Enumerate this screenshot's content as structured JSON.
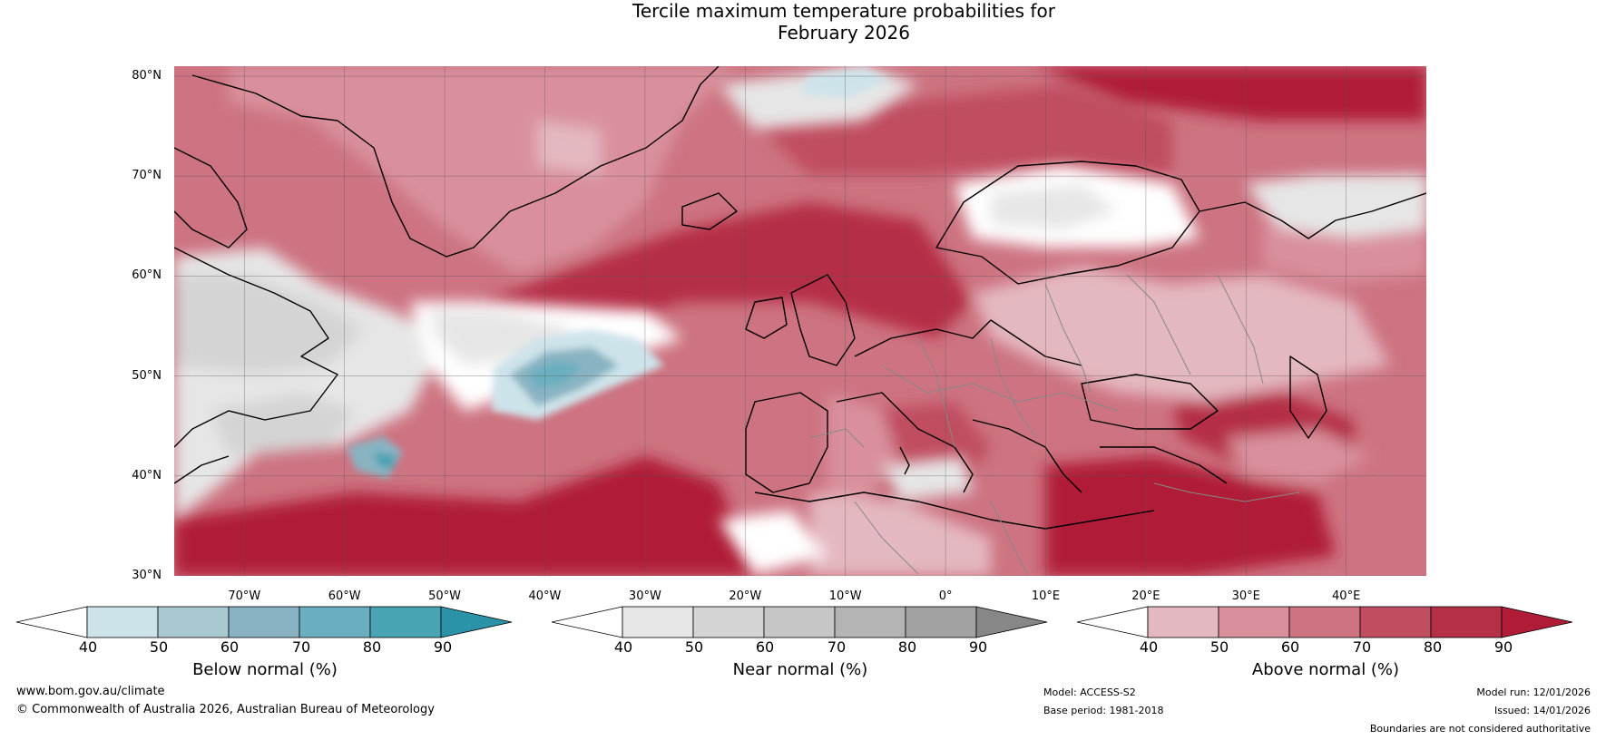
{
  "title_line1": "Tercile maximum temperature probabilities for",
  "title_line2": "February 2026",
  "map": {
    "lat_labels": [
      "80°N",
      "70°N",
      "60°N",
      "50°N",
      "40°N",
      "30°N"
    ],
    "lon_labels": [
      "70°W",
      "60°W",
      "50°W",
      "40°W",
      "30°W",
      "20°W",
      "10°W",
      "0°",
      "10°E",
      "20°E",
      "30°E",
      "40°E"
    ],
    "lat_range": [
      30,
      81
    ],
    "lon_range": [
      -77,
      48
    ]
  },
  "colorbars": [
    {
      "title": "Below normal (%)",
      "ticks": [
        "40",
        "50",
        "60",
        "70",
        "80",
        "90"
      ],
      "colors": [
        "#ffffff",
        "#cde3ea",
        "#a9c8d0",
        "#89b3c2",
        "#6aafc0",
        "#48a3b3",
        "#2a93a8"
      ]
    },
    {
      "title": "Near normal (%)",
      "ticks": [
        "40",
        "50",
        "60",
        "70",
        "80",
        "90"
      ],
      "colors": [
        "#ffffff",
        "#e6e6e6",
        "#d4d4d4",
        "#c6c6c6",
        "#b4b4b4",
        "#a2a2a2",
        "#878787"
      ]
    },
    {
      "title": "Above normal (%)",
      "ticks": [
        "40",
        "50",
        "60",
        "70",
        "80",
        "90"
      ],
      "colors": [
        "#ffffff",
        "#e4b8c0",
        "#d9909c",
        "#cd7381",
        "#c04d60",
        "#b52f46",
        "#b01c38"
      ]
    }
  ],
  "footer": {
    "website": "www.bom.gov.au/climate",
    "copyright": "© Commonwealth of Australia 2026, Australian Bureau of Meteorology",
    "model": "Model: ACCESS-S2",
    "base_period": "Base period: 1981-2018",
    "model_run": "Model run: 12/01/2026",
    "issued": "Issued: 14/01/2026",
    "disclaimer": "Boundaries are not considered authoritative"
  }
}
